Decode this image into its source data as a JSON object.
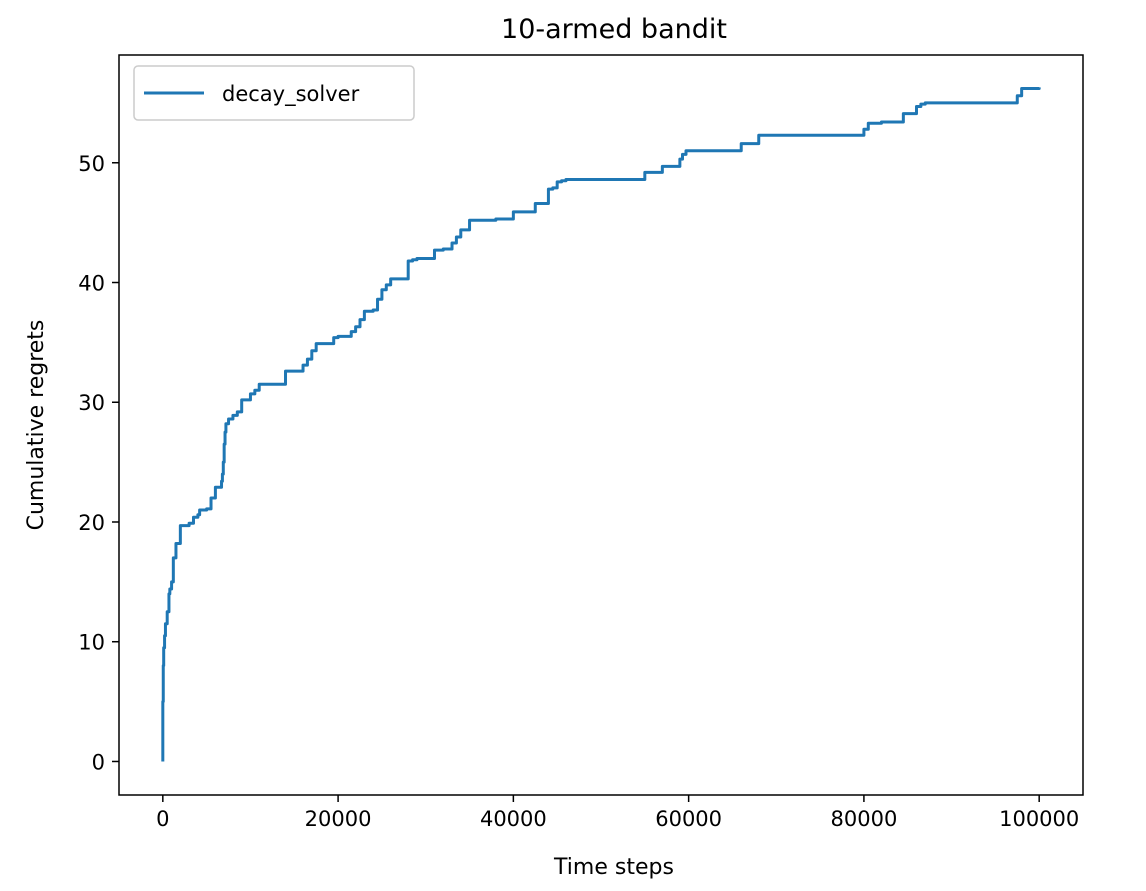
{
  "chart_data": {
    "type": "line",
    "title": "10-armed bandit",
    "xlabel": "Time steps",
    "ylabel": "Cumulative regrets",
    "xlim": [
      -5000,
      105000
    ],
    "ylim": [
      -2.8,
      59
    ],
    "xticks": [
      0,
      20000,
      40000,
      60000,
      80000,
      100000
    ],
    "xtick_labels": [
      "0",
      "20000",
      "40000",
      "60000",
      "80000",
      "100000"
    ],
    "yticks": [
      0,
      10,
      20,
      30,
      40,
      50
    ],
    "ytick_labels": [
      "0",
      "10",
      "20",
      "30",
      "40",
      "50"
    ],
    "grid": false,
    "legend_position": "upper-left",
    "series": [
      {
        "name": "decay_solver",
        "color": "#1f77b4",
        "x": [
          0,
          0,
          50,
          100,
          200,
          300,
          500,
          700,
          800,
          1000,
          1200,
          1500,
          2000,
          3000,
          3500,
          4000,
          4200,
          4600,
          5000,
          5500,
          6000,
          6500,
          6700,
          6800,
          6900,
          7000,
          7100,
          7200,
          7500,
          8000,
          8500,
          9000,
          9500,
          10000,
          10500,
          11000,
          13500,
          14000,
          15500,
          16000,
          16500,
          17000,
          17500,
          18000,
          19500,
          20000,
          20500,
          21500,
          22000,
          22500,
          23000,
          24000,
          24500,
          25000,
          25500,
          26000,
          27500,
          28000,
          28500,
          29000,
          30500,
          31000,
          32000,
          33000,
          33500,
          34000,
          35000,
          36000,
          38000,
          40000,
          41000,
          42500,
          44000,
          44500,
          45000,
          45500,
          46000,
          48000,
          54000,
          55000,
          57000,
          59000,
          59300,
          59700,
          65500,
          66000,
          67500,
          68000,
          79500,
          80000,
          80500,
          82000,
          84000,
          84500,
          85500,
          86000,
          86500,
          87000,
          95000,
          97500,
          98000,
          100000
        ],
        "y": [
          0,
          5,
          8,
          9.5,
          10.5,
          11.5,
          12.5,
          14,
          14.4,
          15,
          17,
          18.2,
          19.7,
          19.9,
          20.4,
          20.6,
          21,
          21,
          21.1,
          22,
          22.9,
          22.9,
          23.4,
          24,
          25,
          26.5,
          27.5,
          28.2,
          28.6,
          28.9,
          29.2,
          30.2,
          30.2,
          30.7,
          31,
          31.5,
          31.5,
          32.6,
          32.6,
          33.1,
          33.6,
          34.3,
          34.9,
          34.9,
          35.4,
          35.5,
          35.5,
          35.9,
          36.3,
          36.9,
          37.6,
          37.7,
          38.6,
          39.4,
          39.8,
          40.3,
          40.3,
          41.8,
          41.9,
          42,
          42,
          42.7,
          42.8,
          43.3,
          43.8,
          44.4,
          45.2,
          45.2,
          45.3,
          45.9,
          45.9,
          46.6,
          47.8,
          47.9,
          48.4,
          48.5,
          48.6,
          48.6,
          48.6,
          49.2,
          49.7,
          50.3,
          50.7,
          51.0,
          51.0,
          51.6,
          51.6,
          52.3,
          52.3,
          52.8,
          53.3,
          53.4,
          53.4,
          54.1,
          54.1,
          54.7,
          54.9,
          55.0,
          55.0,
          55.6,
          56.2,
          56.3
        ]
      }
    ]
  }
}
